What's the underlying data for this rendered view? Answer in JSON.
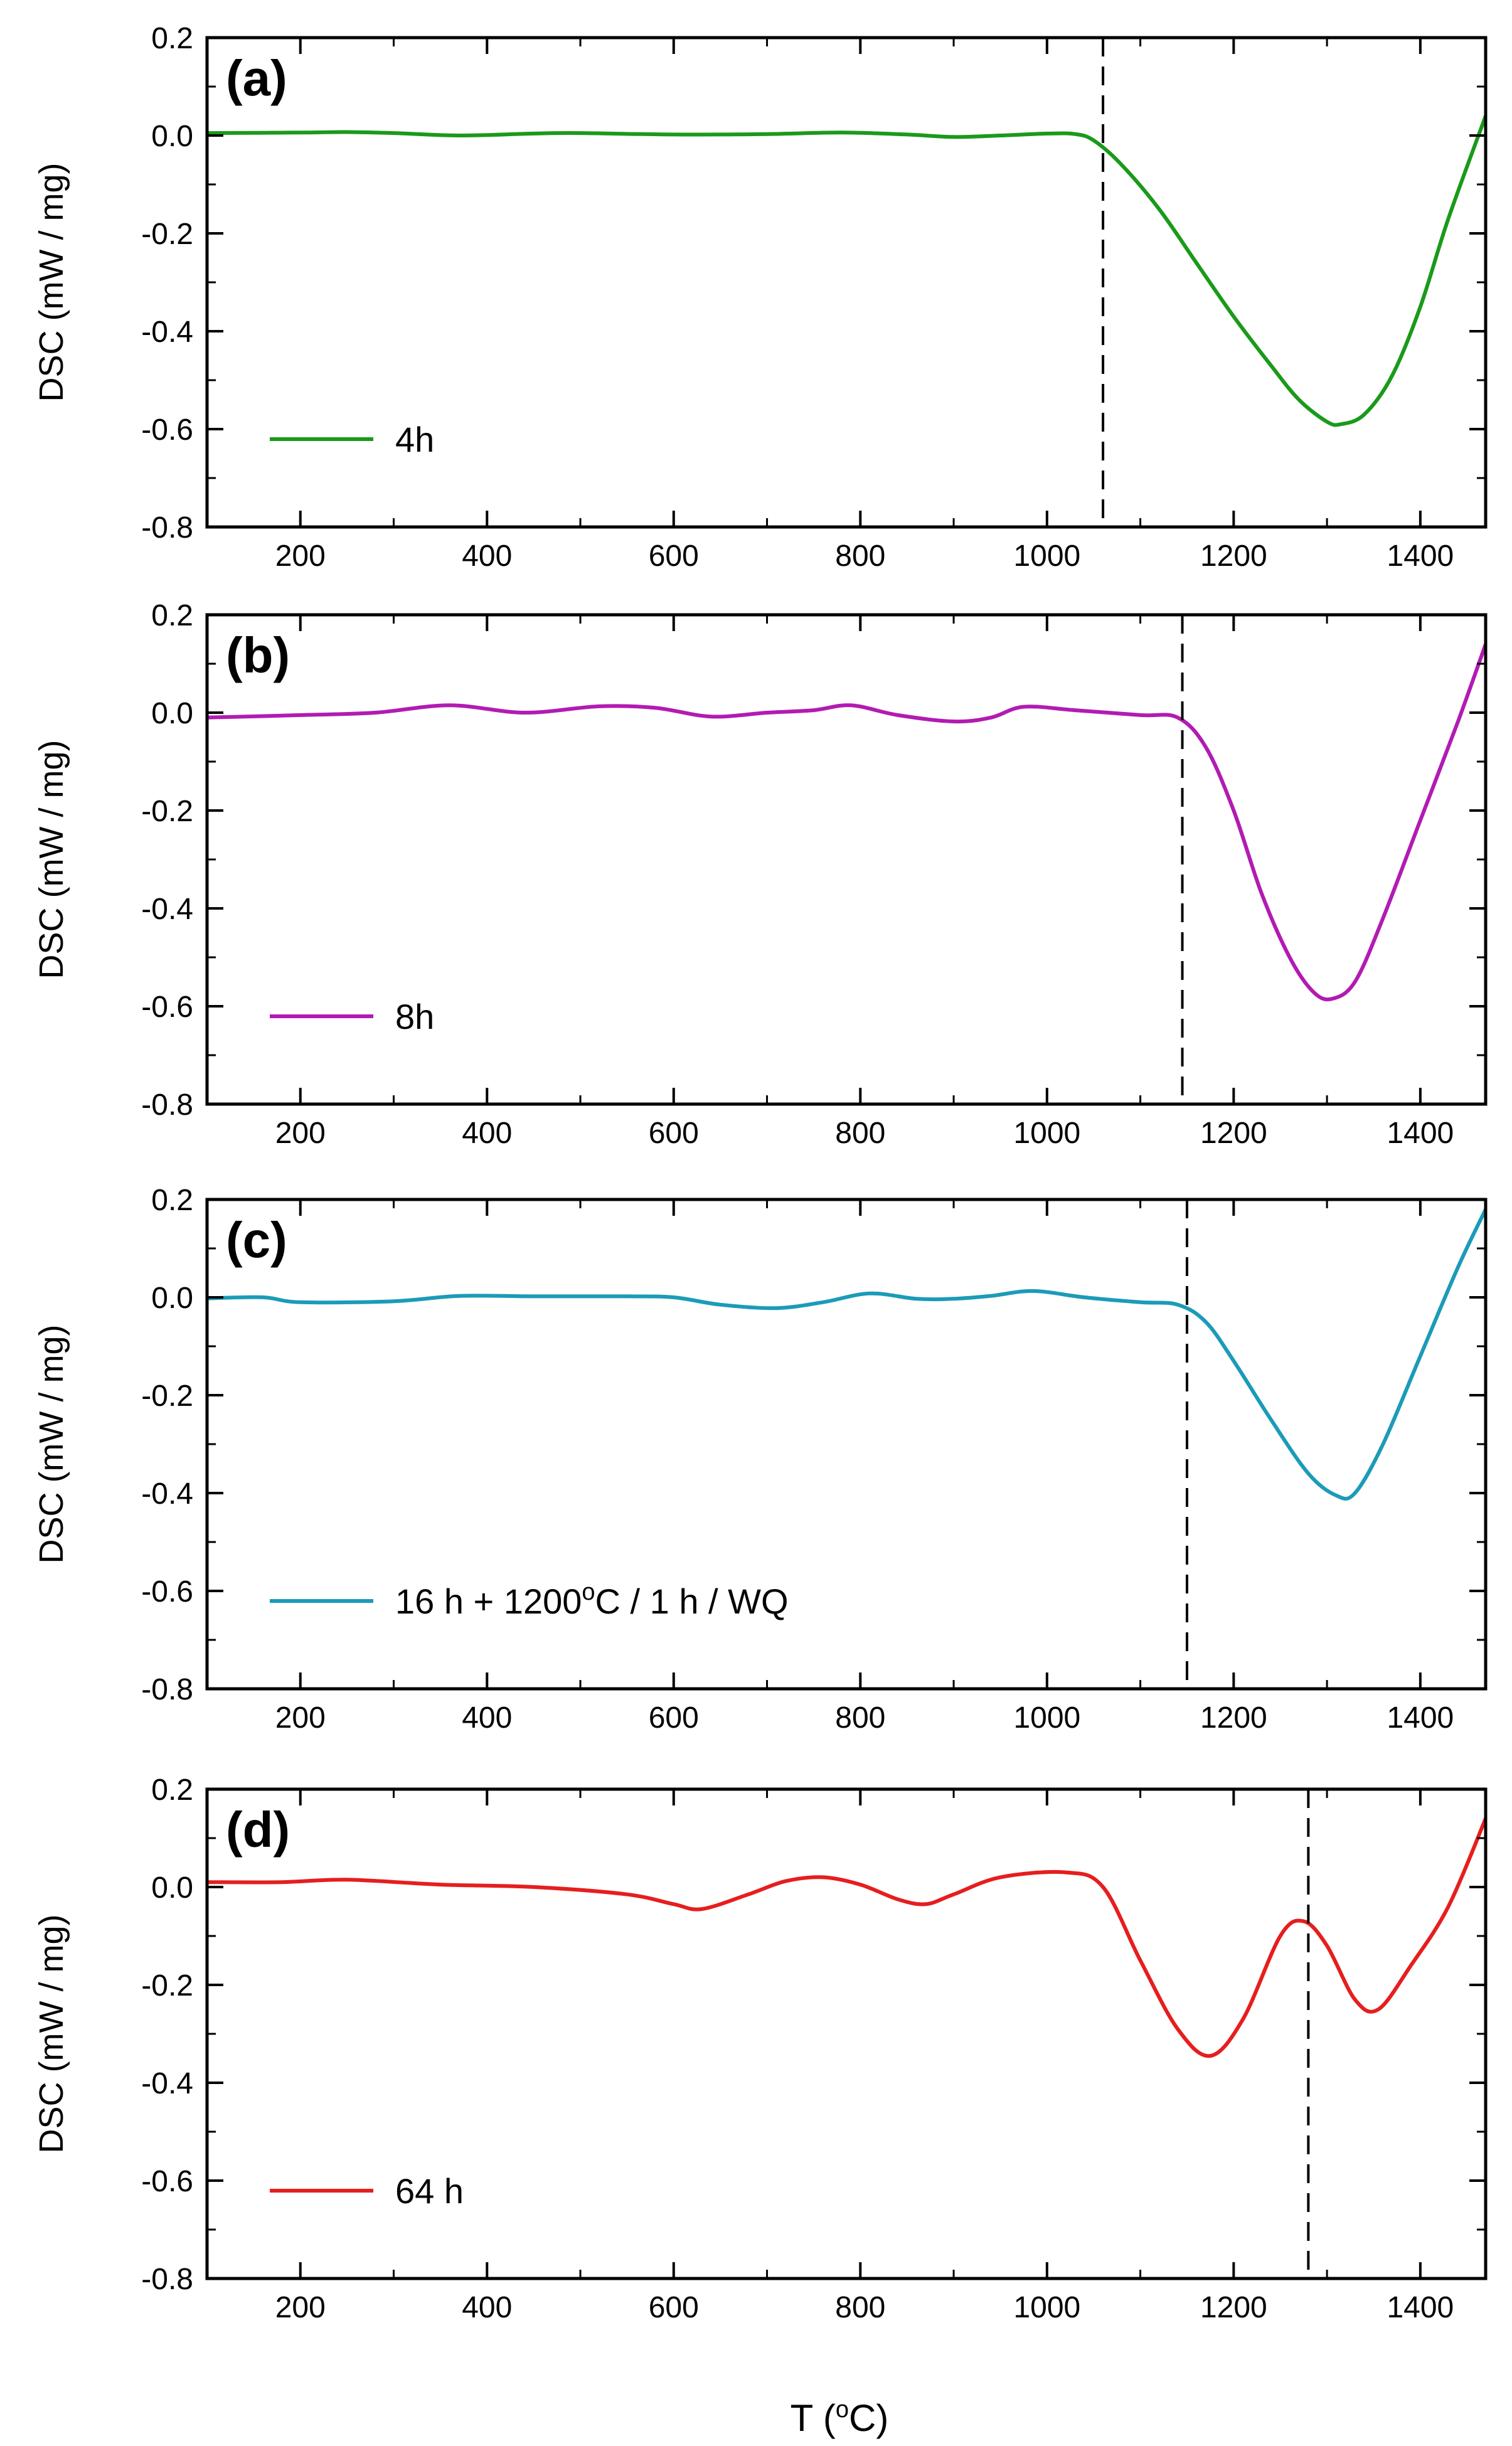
{
  "chart_data": [
    {
      "type": "line",
      "panel_label": "(a)",
      "ylabel": "DSC (mW / mg)",
      "xlim": [
        100,
        1470
      ],
      "ylim": [
        -0.8,
        0.2
      ],
      "yticks": [
        "0.2",
        "0.0",
        "-0.2",
        "-0.4",
        "-0.6",
        "-0.8"
      ],
      "xticks": [
        "200",
        "400",
        "600",
        "800",
        "1000",
        "1200",
        "1400"
      ],
      "vline_x": 1060,
      "legend_position": "lower-left",
      "series": [
        {
          "name": "4h",
          "color": "#1a9a1a",
          "x": [
            100,
            200,
            250,
            300,
            370,
            450,
            500,
            600,
            700,
            780,
            850,
            900,
            950,
            1000,
            1030,
            1050,
            1080,
            1120,
            1160,
            1200,
            1240,
            1270,
            1300,
            1315,
            1340,
            1370,
            1400,
            1430,
            1470
          ],
          "y": [
            0.005,
            0.006,
            0.007,
            0.005,
            0.0,
            0.004,
            0.005,
            0.002,
            0.003,
            0.006,
            0.002,
            -0.003,
            0.0,
            0.004,
            0.003,
            -0.01,
            -0.06,
            -0.15,
            -0.26,
            -0.37,
            -0.47,
            -0.54,
            -0.585,
            -0.59,
            -0.57,
            -0.49,
            -0.35,
            -0.17,
            0.04
          ]
        }
      ]
    },
    {
      "type": "line",
      "panel_label": "(b)",
      "ylabel": "DSC (mW / mg)",
      "xlim": [
        100,
        1470
      ],
      "ylim": [
        -0.8,
        0.2
      ],
      "yticks": [
        "0.2",
        "0.0",
        "-0.2",
        "-0.4",
        "-0.6",
        "-0.8"
      ],
      "xticks": [
        "200",
        "400",
        "600",
        "800",
        "1000",
        "1200",
        "1400"
      ],
      "vline_x": 1145,
      "legend_position": "lower-left",
      "series": [
        {
          "name": "8h",
          "color": "#b21bb2",
          "x": [
            100,
            200,
            280,
            360,
            440,
            520,
            580,
            640,
            700,
            750,
            790,
            840,
            900,
            940,
            975,
            1030,
            1100,
            1140,
            1170,
            1200,
            1230,
            1260,
            1285,
            1305,
            1330,
            1360,
            1400,
            1440,
            1470
          ],
          "y": [
            -0.01,
            -0.005,
            0.0,
            0.015,
            0.0,
            0.013,
            0.01,
            -0.008,
            0.0,
            0.005,
            0.015,
            -0.005,
            -0.018,
            -0.01,
            0.012,
            0.005,
            -0.005,
            -0.01,
            -0.07,
            -0.2,
            -0.37,
            -0.5,
            -0.57,
            -0.585,
            -0.55,
            -0.42,
            -0.22,
            -0.02,
            0.14
          ]
        }
      ]
    },
    {
      "type": "line",
      "panel_label": "(c)",
      "ylabel": "DSC (mW / mg)",
      "xlim": [
        100,
        1470
      ],
      "ylim": [
        -0.8,
        0.2
      ],
      "yticks": [
        "0.2",
        "0.0",
        "-0.2",
        "-0.4",
        "-0.6",
        "-0.8"
      ],
      "xticks": [
        "200",
        "400",
        "600",
        "800",
        "1000",
        "1200",
        "1400"
      ],
      "vline_x": 1150,
      "legend_position": "lower-left",
      "series": [
        {
          "name": "16 h + 1200°C / 1 h / WQ",
          "color": "#1b9bb8",
          "x": [
            100,
            160,
            200,
            300,
            370,
            450,
            550,
            600,
            650,
            710,
            760,
            810,
            860,
            900,
            940,
            985,
            1040,
            1100,
            1140,
            1170,
            1200,
            1240,
            1280,
            1310,
            1330,
            1360,
            1400,
            1440,
            1470
          ],
          "y": [
            -0.002,
            0.0,
            -0.01,
            -0.008,
            0.003,
            0.002,
            0.002,
            0.0,
            -0.015,
            -0.022,
            -0.01,
            0.008,
            -0.003,
            -0.003,
            0.003,
            0.013,
            0.0,
            -0.01,
            -0.015,
            -0.05,
            -0.13,
            -0.25,
            -0.36,
            -0.405,
            -0.4,
            -0.3,
            -0.12,
            0.06,
            0.18
          ]
        }
      ]
    },
    {
      "type": "line",
      "panel_label": "(d)",
      "ylabel": "DSC (mW / mg)",
      "xlim": [
        100,
        1470
      ],
      "ylim": [
        -0.8,
        0.2
      ],
      "yticks": [
        "0.2",
        "0.0",
        "-0.2",
        "-0.4",
        "-0.6",
        "-0.8"
      ],
      "xticks": [
        "200",
        "400",
        "600",
        "800",
        "1000",
        "1200",
        "1400"
      ],
      "vline_x": 1280,
      "legend_position": "lower-left",
      "series": [
        {
          "name": "64 h",
          "color": "#e61e1e",
          "x": [
            100,
            180,
            250,
            350,
            450,
            550,
            600,
            630,
            680,
            720,
            760,
            800,
            840,
            870,
            900,
            950,
            1020,
            1060,
            1100,
            1140,
            1175,
            1210,
            1250,
            1275,
            1300,
            1330,
            1355,
            1390,
            1430,
            1470
          ],
          "y": [
            0.01,
            0.01,
            0.015,
            0.005,
            0.0,
            -0.015,
            -0.035,
            -0.045,
            -0.015,
            0.012,
            0.02,
            0.005,
            -0.025,
            -0.035,
            -0.015,
            0.02,
            0.03,
            0.0,
            -0.15,
            -0.29,
            -0.345,
            -0.27,
            -0.1,
            -0.07,
            -0.12,
            -0.23,
            -0.25,
            -0.16,
            -0.04,
            0.14
          ]
        }
      ]
    }
  ],
  "shared": {
    "xlabel": "T (",
    "xlabel_sup": "o",
    "xlabel_end": "C)"
  }
}
